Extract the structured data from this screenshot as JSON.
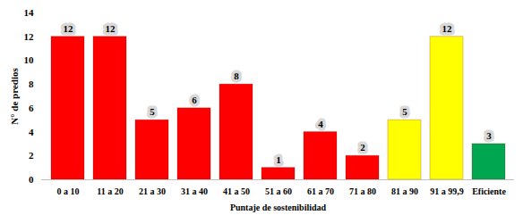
{
  "chart_data": {
    "type": "bar",
    "categories": [
      "0 a 10",
      "11 a 20",
      "21 a 30",
      "31 a 40",
      "41 a 50",
      "51 a 60",
      "61 a 70",
      "71 a 80",
      "81 a 90",
      "91 a 99,9",
      "Eficiente"
    ],
    "values": [
      12,
      12,
      5,
      6,
      8,
      1,
      4,
      2,
      5,
      12,
      3
    ],
    "colors": [
      "#ff0000",
      "#ff0000",
      "#ff0000",
      "#ff0000",
      "#ff0000",
      "#ff0000",
      "#ff0000",
      "#ff0000",
      "#ffff00",
      "#ffff00",
      "#00a650"
    ],
    "x_label": "Puntaje de sostenibilidad",
    "y_label": "N° de predios",
    "ylim": [
      0,
      14
    ],
    "yticks": [
      0,
      2,
      4,
      6,
      8,
      10,
      12,
      14
    ],
    "grid": false,
    "data_labels": true
  }
}
